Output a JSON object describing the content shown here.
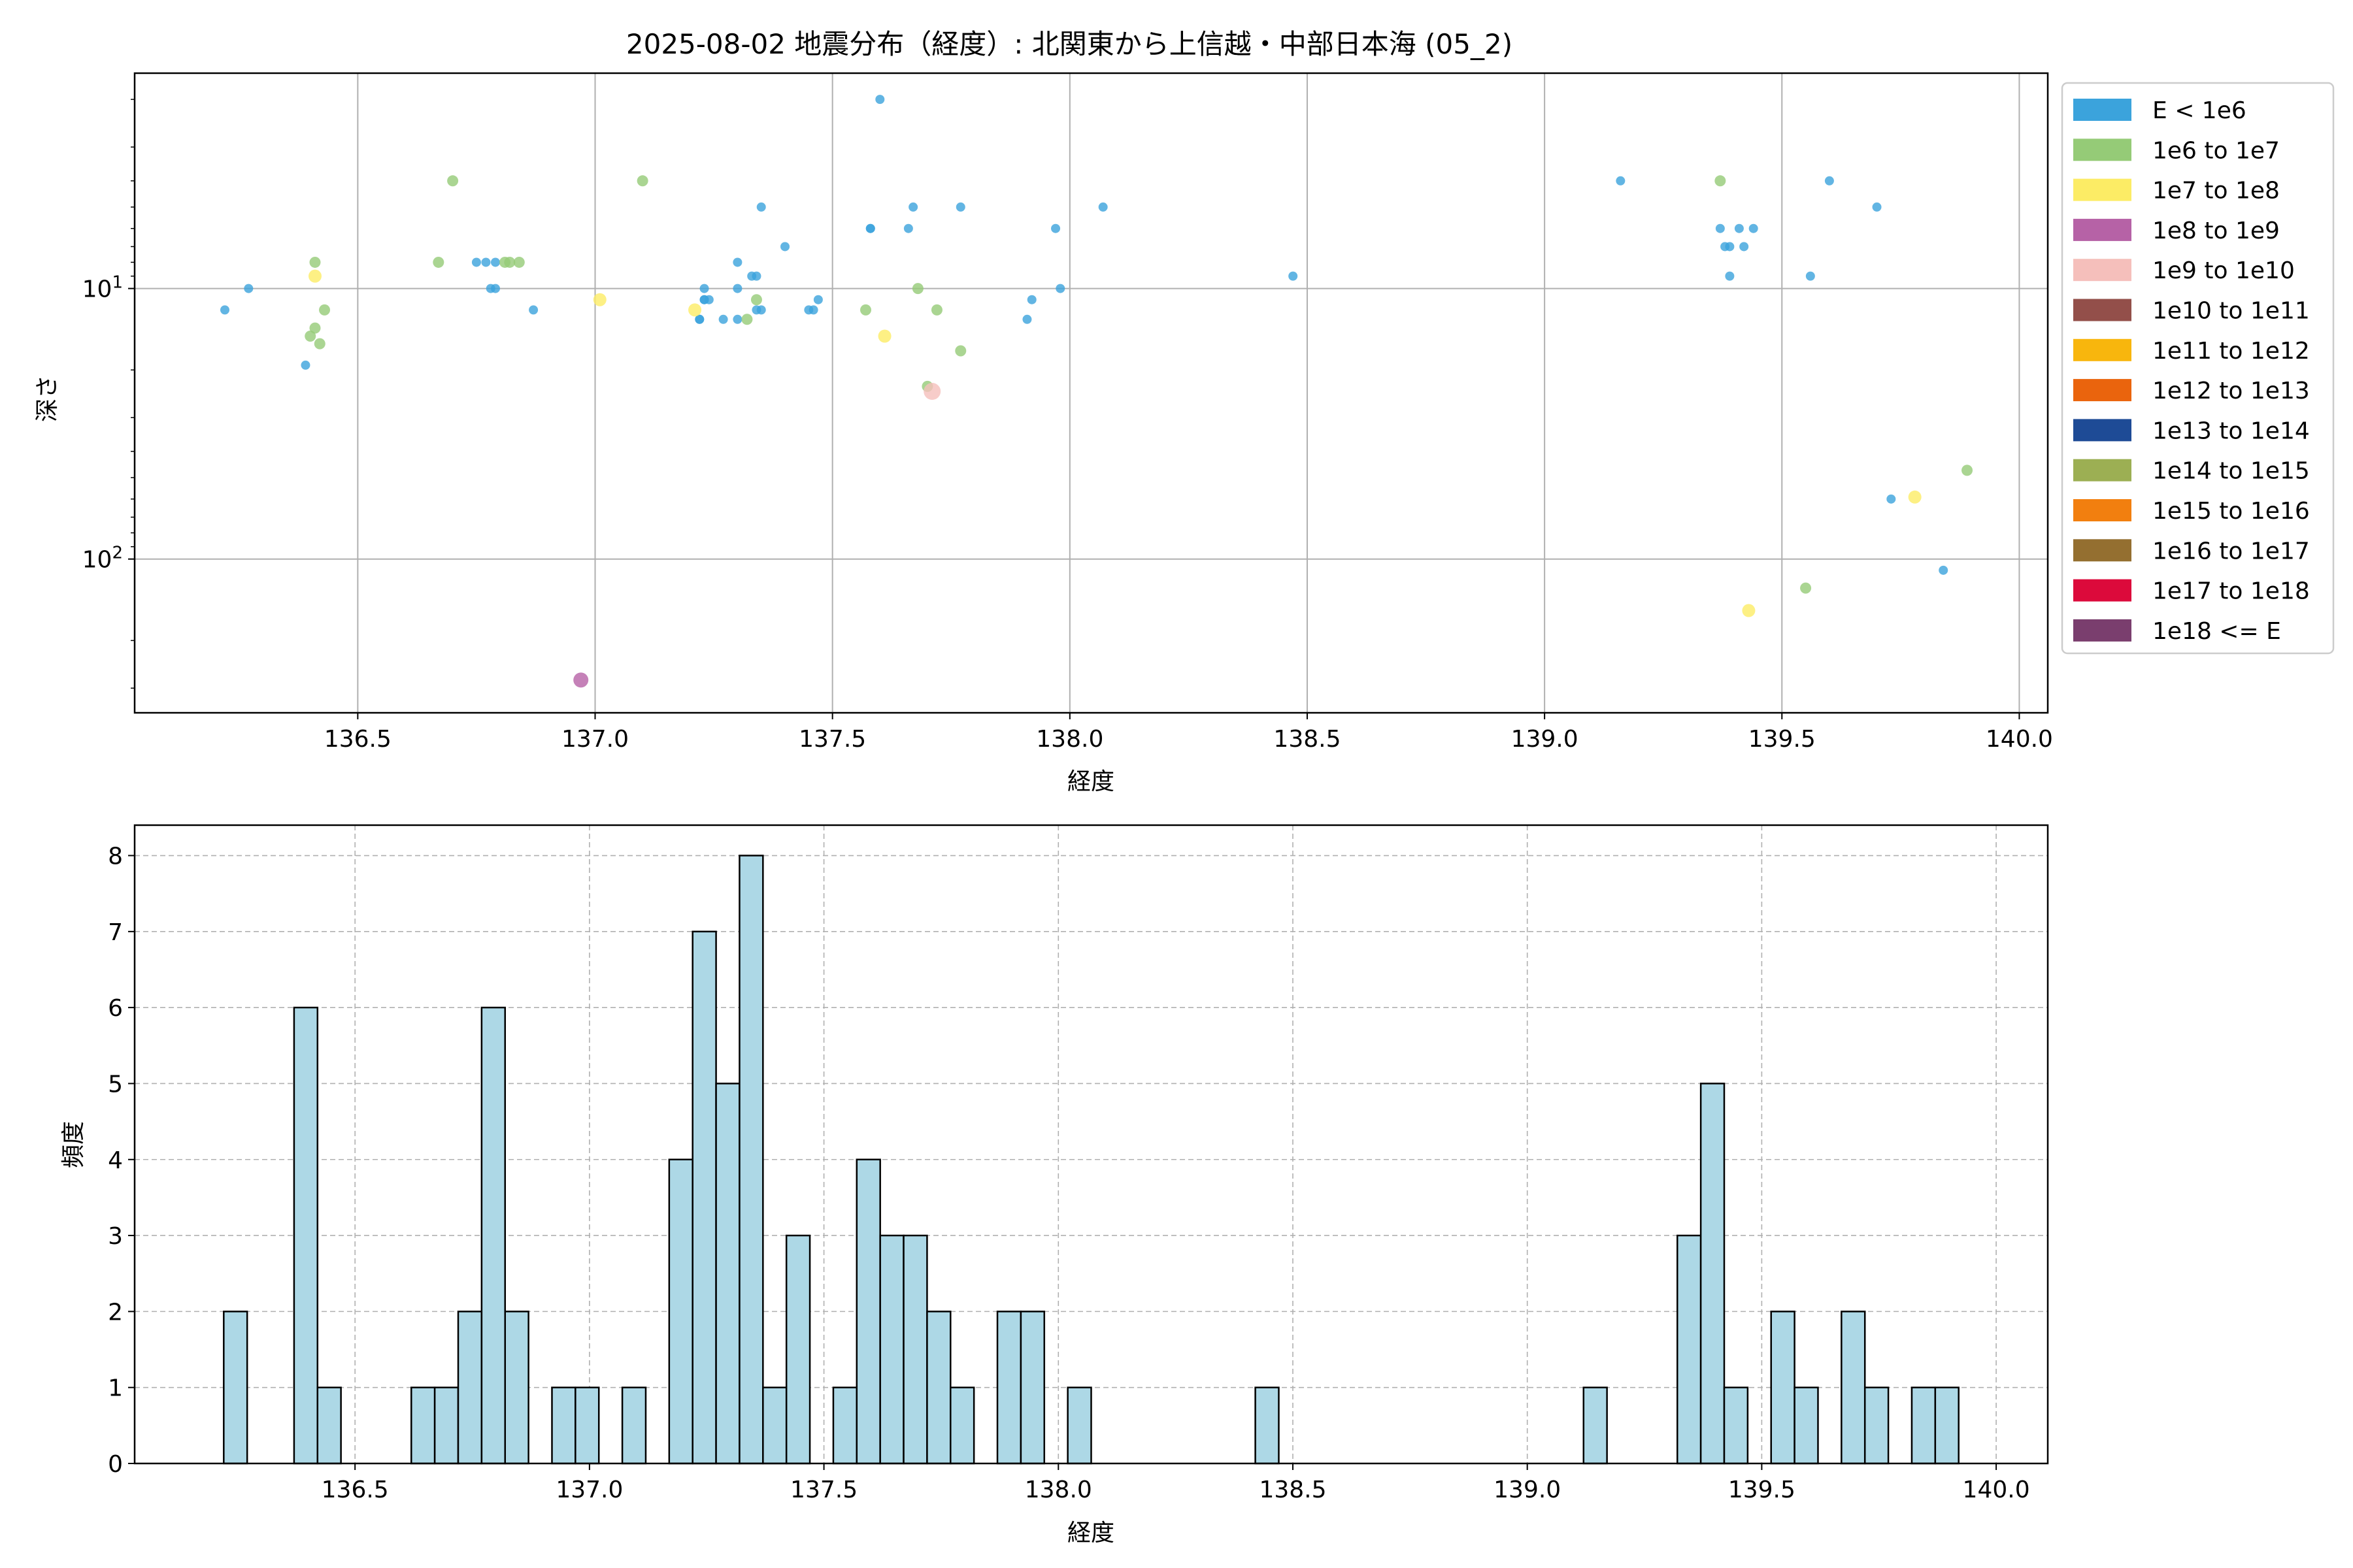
{
  "figure": {
    "title": "2025-08-02 地震分布（経度）: 北関東から上信越・中部日本海 (05_2)"
  },
  "chart_data": [
    {
      "type": "scatter",
      "xlabel": "経度",
      "ylabel": "深さ",
      "xlim": [
        136.03,
        140.06
      ],
      "yscale": "log",
      "y_inverted": true,
      "ylim": [
        370,
        1.6
      ],
      "grid": true,
      "legend_position": "outside-right",
      "x_ticks": [
        136.5,
        137.0,
        137.5,
        138.0,
        138.5,
        139.0,
        139.5,
        140.0
      ],
      "x_tick_labels": [
        "136.5",
        "137.0",
        "137.5",
        "138.0",
        "138.5",
        "139.0",
        "139.5",
        "140.0"
      ],
      "y_ticks": [
        {
          "value": 10,
          "base": "10",
          "exp": "1"
        },
        {
          "value": 100,
          "base": "10",
          "exp": "2"
        }
      ],
      "legend": [
        {
          "label": "E < 1e6",
          "color": "#3ba3dc"
        },
        {
          "label": "1e6 to 1e7",
          "color": "#95cb77"
        },
        {
          "label": "1e7 to 1e8",
          "color": "#fcec65"
        },
        {
          "label": "1e8 to 1e9",
          "color": "#b662a6"
        },
        {
          "label": "1e9 to 1e10",
          "color": "#f5bfbb"
        },
        {
          "label": "1e10 to 1e11",
          "color": "#934f4a"
        },
        {
          "label": "1e11 to 1e12",
          "color": "#f8b60d"
        },
        {
          "label": "1e12 to 1e13",
          "color": "#ea640d"
        },
        {
          "label": "1e13 to 1e14",
          "color": "#1e4b96"
        },
        {
          "label": "1e14 to 1e15",
          "color": "#9caf53"
        },
        {
          "label": "1e15 to 1e16",
          "color": "#f27f0f"
        },
        {
          "label": "1e16 to 1e17",
          "color": "#946f30"
        },
        {
          "label": "1e17 to 1e18",
          "color": "#dc0a3b"
        },
        {
          "label": "1e18 <= E",
          "color": "#7a3e6e"
        }
      ],
      "series": [
        {
          "class": 0,
          "points": [
            [
              136.22,
              12
            ],
            [
              136.27,
              10
            ],
            [
              136.39,
              19.2
            ],
            [
              136.75,
              8
            ],
            [
              136.77,
              8
            ],
            [
              136.79,
              8
            ],
            [
              136.78,
              10
            ],
            [
              136.79,
              10
            ],
            [
              136.87,
              12
            ],
            [
              137.22,
              13
            ],
            [
              137.22,
              13
            ],
            [
              137.23,
              11
            ],
            [
              137.23,
              11
            ],
            [
              137.23,
              10
            ],
            [
              137.24,
              11
            ],
            [
              137.27,
              13
            ],
            [
              137.3,
              13
            ],
            [
              137.3,
              10
            ],
            [
              137.3,
              8
            ],
            [
              137.33,
              9
            ],
            [
              137.34,
              9
            ],
            [
              137.34,
              12
            ],
            [
              137.35,
              12
            ],
            [
              137.35,
              5
            ],
            [
              137.4,
              7
            ],
            [
              137.45,
              12
            ],
            [
              137.46,
              12
            ],
            [
              137.47,
              11
            ],
            [
              137.58,
              6
            ],
            [
              137.58,
              6
            ],
            [
              137.6,
              2
            ],
            [
              137.66,
              6
            ],
            [
              137.67,
              5
            ],
            [
              137.77,
              5
            ],
            [
              137.91,
              13
            ],
            [
              137.92,
              11
            ],
            [
              137.97,
              6
            ],
            [
              137.98,
              10
            ],
            [
              138.07,
              5
            ],
            [
              138.47,
              9
            ],
            [
              139.16,
              4
            ],
            [
              139.37,
              6
            ],
            [
              139.38,
              7
            ],
            [
              139.39,
              7
            ],
            [
              139.39,
              9
            ],
            [
              139.41,
              6
            ],
            [
              139.42,
              7
            ],
            [
              139.44,
              6
            ],
            [
              139.56,
              9
            ],
            [
              139.6,
              4
            ],
            [
              139.7,
              5
            ],
            [
              139.73,
              60
            ],
            [
              139.84,
              110
            ]
          ]
        },
        {
          "class": 1,
          "points": [
            [
              136.4,
              15
            ],
            [
              136.41,
              14
            ],
            [
              136.42,
              16
            ],
            [
              136.41,
              8
            ],
            [
              136.43,
              12
            ],
            [
              136.67,
              8
            ],
            [
              136.7,
              4
            ],
            [
              136.81,
              8
            ],
            [
              136.82,
              8
            ],
            [
              136.84,
              8
            ],
            [
              137.1,
              4
            ],
            [
              137.32,
              13
            ],
            [
              137.34,
              11
            ],
            [
              137.57,
              12
            ],
            [
              137.68,
              10
            ],
            [
              137.7,
              23
            ],
            [
              137.72,
              12
            ],
            [
              137.77,
              17
            ],
            [
              139.37,
              4
            ],
            [
              139.55,
              128
            ],
            [
              139.89,
              47
            ]
          ]
        },
        {
          "class": 2,
          "points": [
            [
              136.41,
              9
            ],
            [
              137.01,
              11
            ],
            [
              137.21,
              12
            ],
            [
              137.61,
              15
            ],
            [
              139.43,
              155
            ],
            [
              139.78,
              59
            ]
          ]
        },
        {
          "class": 3,
          "points": [
            [
              136.97,
              280
            ]
          ]
        },
        {
          "class": 4,
          "points": [
            [
              137.71,
              24
            ]
          ]
        }
      ]
    },
    {
      "type": "bar",
      "xlabel": "経度",
      "ylabel": "頻度",
      "xlim": [
        136.03,
        140.11
      ],
      "ylim": [
        0,
        8.4
      ],
      "grid": true,
      "grid_style": "dashed",
      "bar_color": "#add8e6",
      "bin_width": 0.05,
      "x_ticks": [
        136.5,
        137.0,
        137.5,
        138.0,
        138.5,
        139.0,
        139.5,
        140.0
      ],
      "x_tick_labels": [
        "136.5",
        "137.0",
        "137.5",
        "138.0",
        "138.5",
        "139.0",
        "139.5",
        "140.0"
      ],
      "y_ticks": [
        0,
        1,
        2,
        3,
        4,
        5,
        6,
        7,
        8
      ],
      "bins": [
        {
          "start": 136.22,
          "count": 2
        },
        {
          "start": 136.37,
          "count": 6
        },
        {
          "start": 136.42,
          "count": 1
        },
        {
          "start": 136.62,
          "count": 1
        },
        {
          "start": 136.67,
          "count": 1
        },
        {
          "start": 136.72,
          "count": 2
        },
        {
          "start": 136.77,
          "count": 6
        },
        {
          "start": 136.82,
          "count": 2
        },
        {
          "start": 136.92,
          "count": 1
        },
        {
          "start": 136.97,
          "count": 1
        },
        {
          "start": 137.07,
          "count": 1
        },
        {
          "start": 137.17,
          "count": 4
        },
        {
          "start": 137.22,
          "count": 7
        },
        {
          "start": 137.27,
          "count": 5
        },
        {
          "start": 137.32,
          "count": 8
        },
        {
          "start": 137.37,
          "count": 1
        },
        {
          "start": 137.42,
          "count": 3
        },
        {
          "start": 137.52,
          "count": 1
        },
        {
          "start": 137.57,
          "count": 4
        },
        {
          "start": 137.62,
          "count": 3
        },
        {
          "start": 137.67,
          "count": 3
        },
        {
          "start": 137.72,
          "count": 2
        },
        {
          "start": 137.77,
          "count": 1
        },
        {
          "start": 137.87,
          "count": 2
        },
        {
          "start": 137.92,
          "count": 2
        },
        {
          "start": 138.02,
          "count": 1
        },
        {
          "start": 138.42,
          "count": 1
        },
        {
          "start": 139.12,
          "count": 1
        },
        {
          "start": 139.32,
          "count": 3
        },
        {
          "start": 139.37,
          "count": 5
        },
        {
          "start": 139.42,
          "count": 1
        },
        {
          "start": 139.52,
          "count": 2
        },
        {
          "start": 139.57,
          "count": 1
        },
        {
          "start": 139.67,
          "count": 2
        },
        {
          "start": 139.72,
          "count": 1
        },
        {
          "start": 139.82,
          "count": 1
        },
        {
          "start": 139.87,
          "count": 1
        }
      ]
    }
  ]
}
